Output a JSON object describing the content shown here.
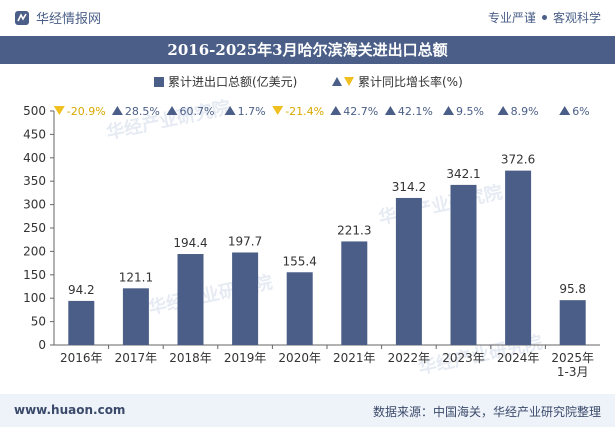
{
  "header": {
    "brand": "华经情报网",
    "tagline_left": "专业严谨",
    "tagline_right": "客观科学"
  },
  "footer": {
    "url": "www.huaon.com",
    "source": "数据来源：中国海关，华经产业研究院整理"
  },
  "watermark": "华经产业研究院",
  "colors": {
    "bar": "#4a5e87",
    "up": "#4a5e87",
    "down": "#f0c020",
    "band": "#4a5e87"
  },
  "chart_data": {
    "type": "bar",
    "title": "2016-2025年3月哈尔滨海关进出口总额",
    "categories": [
      "2016年",
      "2017年",
      "2018年",
      "2019年",
      "2020年",
      "2021年",
      "2022年",
      "2023年",
      "2024年",
      "2025年\n1-3月"
    ],
    "series": [
      {
        "name": "累计进出口总额(亿美元)",
        "values": [
          94.2,
          121.1,
          194.4,
          197.7,
          155.4,
          221.3,
          314.2,
          342.1,
          372.6,
          95.8
        ]
      },
      {
        "name": "累计同比增长率(%)",
        "labels": [
          "-20.9%",
          "28.5%",
          "60.7%",
          "1.7%",
          "-21.4%",
          "42.7%",
          "42.1%",
          "9.5%",
          "8.9%",
          "6%"
        ],
        "values": [
          -20.9,
          28.5,
          60.7,
          1.7,
          -21.4,
          42.7,
          42.1,
          9.5,
          8.9,
          6
        ]
      }
    ],
    "ylim": [
      0,
      500
    ],
    "yticks": [
      0,
      50,
      100,
      150,
      200,
      250,
      300,
      350,
      400,
      450,
      500
    ],
    "legend_position": "top-center",
    "grid": false
  }
}
